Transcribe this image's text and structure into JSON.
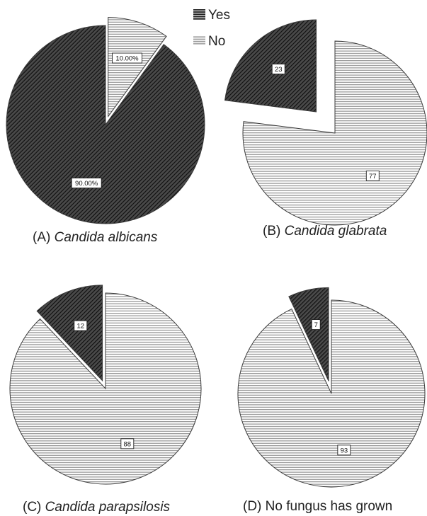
{
  "legend": [
    {
      "label": "Yes",
      "pattern": "dark-diagonal-hatch",
      "color": "#2a2a2a"
    },
    {
      "label": "No",
      "pattern": "light-horizontal-lines",
      "color": "#9a9a9a"
    }
  ],
  "chart_data": [
    {
      "type": "pie",
      "caption_prefix": "(A) ",
      "caption_italic": "Candida albicans",
      "slices": [
        {
          "label": "No",
          "value": 10,
          "display": "10.00%",
          "exploded": true
        },
        {
          "label": "Yes",
          "value": 90,
          "display": "90.00%",
          "exploded": false
        }
      ]
    },
    {
      "type": "pie",
      "caption_prefix": "(B) ",
      "caption_italic": "Candida glabrata",
      "slices": [
        {
          "label": "No",
          "value": 77,
          "display": "77",
          "exploded": false
        },
        {
          "label": "Yes",
          "value": 23,
          "display": "23",
          "exploded": true
        }
      ]
    },
    {
      "type": "pie",
      "caption_prefix": "(C) ",
      "caption_italic": "Candida parapsilosis",
      "slices": [
        {
          "label": "No",
          "value": 88,
          "display": "88",
          "exploded": false
        },
        {
          "label": "Yes",
          "value": 12,
          "display": "12",
          "exploded": true
        }
      ]
    },
    {
      "type": "pie",
      "caption_prefix": "(D) ",
      "caption_italic": "",
      "caption_plain": "No fungus has grown",
      "slices": [
        {
          "label": "No",
          "value": 93,
          "display": "93",
          "exploded": false
        },
        {
          "label": "Yes",
          "value": 7,
          "display": "7",
          "exploded": true
        }
      ]
    }
  ]
}
